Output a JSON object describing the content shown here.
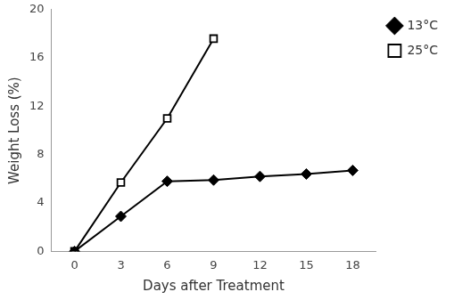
{
  "chart_data": {
    "type": "line",
    "x_label": "Days after Treatment",
    "y_label": "Weight Loss (%)",
    "x": [
      0,
      3,
      6,
      9,
      12,
      15,
      18
    ],
    "series": [
      {
        "name": "13°C",
        "color": "#000000",
        "marker": "diamond",
        "line_style": "solid",
        "values": [
          0,
          2.9,
          5.8,
          5.9,
          6.2,
          6.4,
          6.7
        ]
      },
      {
        "name": "25°C",
        "color": "#000000",
        "marker": "open-square",
        "line_style": "solid",
        "values": [
          0,
          5.7,
          11,
          17.6,
          null,
          null,
          null
        ]
      }
    ],
    "xlim": [
      -1.5,
      19.5
    ],
    "xticks": [
      0,
      3,
      6,
      9,
      12,
      15,
      18
    ],
    "ylim": [
      0,
      20
    ],
    "yticks": [
      0,
      4,
      8,
      12,
      16,
      20
    ],
    "grid": false,
    "legend": "top right"
  }
}
